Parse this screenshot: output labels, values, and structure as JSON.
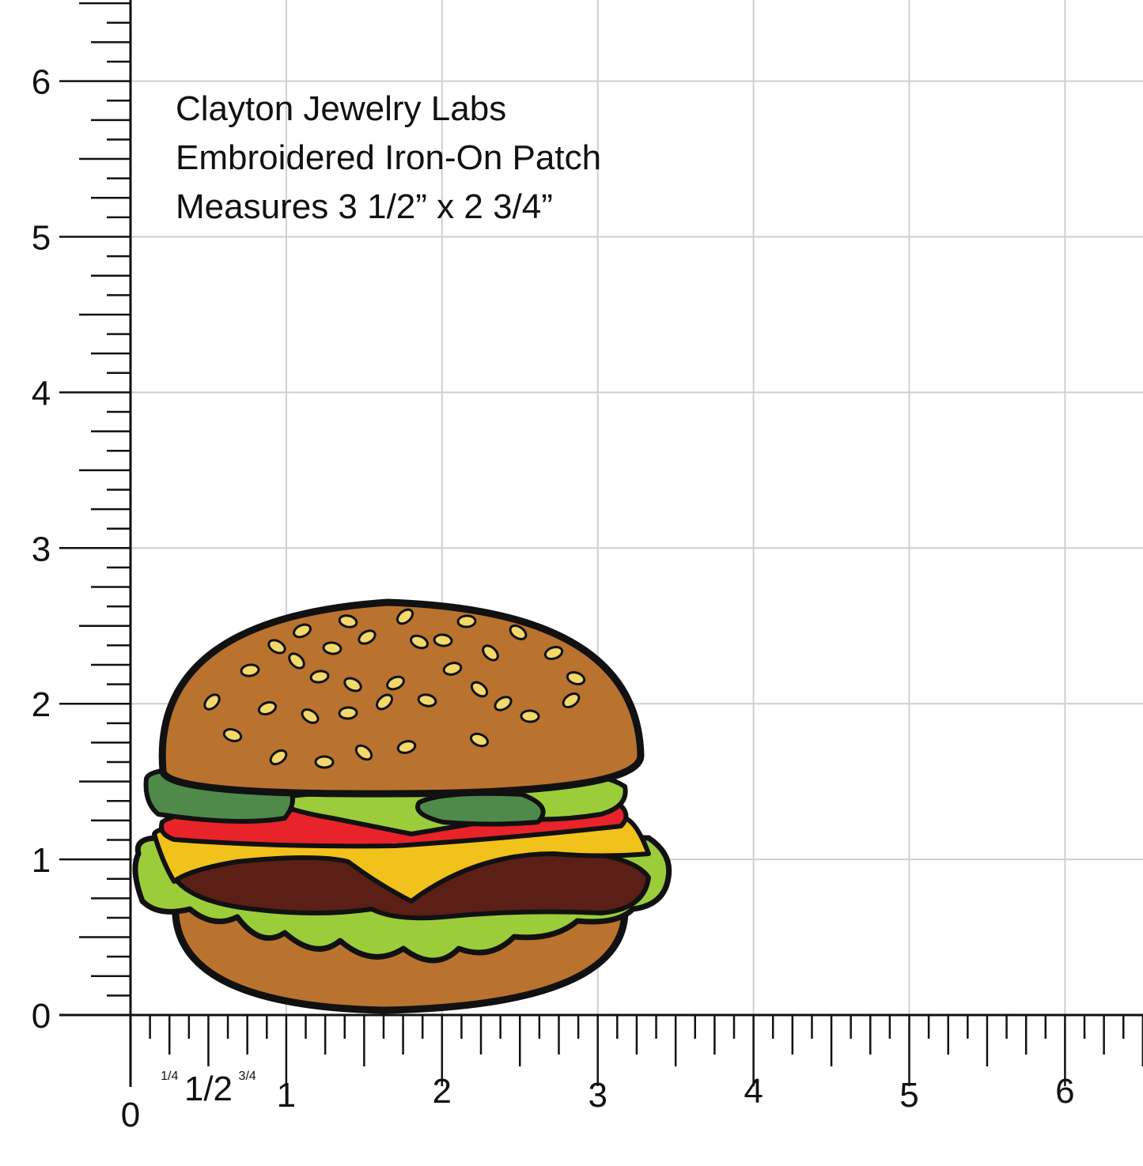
{
  "caption": [
    "Clayton Jewelry Labs",
    "Embroidered Iron-On Patch",
    "Measures 3 1/2” x 2 3/4”"
  ],
  "vertical_ruler": {
    "labels": [
      "0",
      "1",
      "2",
      "3",
      "4",
      "5",
      "6"
    ]
  },
  "horizontal_ruler": {
    "labels": [
      "0",
      "1",
      "2",
      "3",
      "4",
      "5",
      "6"
    ],
    "fractions": [
      "1/4",
      "1/2",
      "3/4"
    ]
  }
}
